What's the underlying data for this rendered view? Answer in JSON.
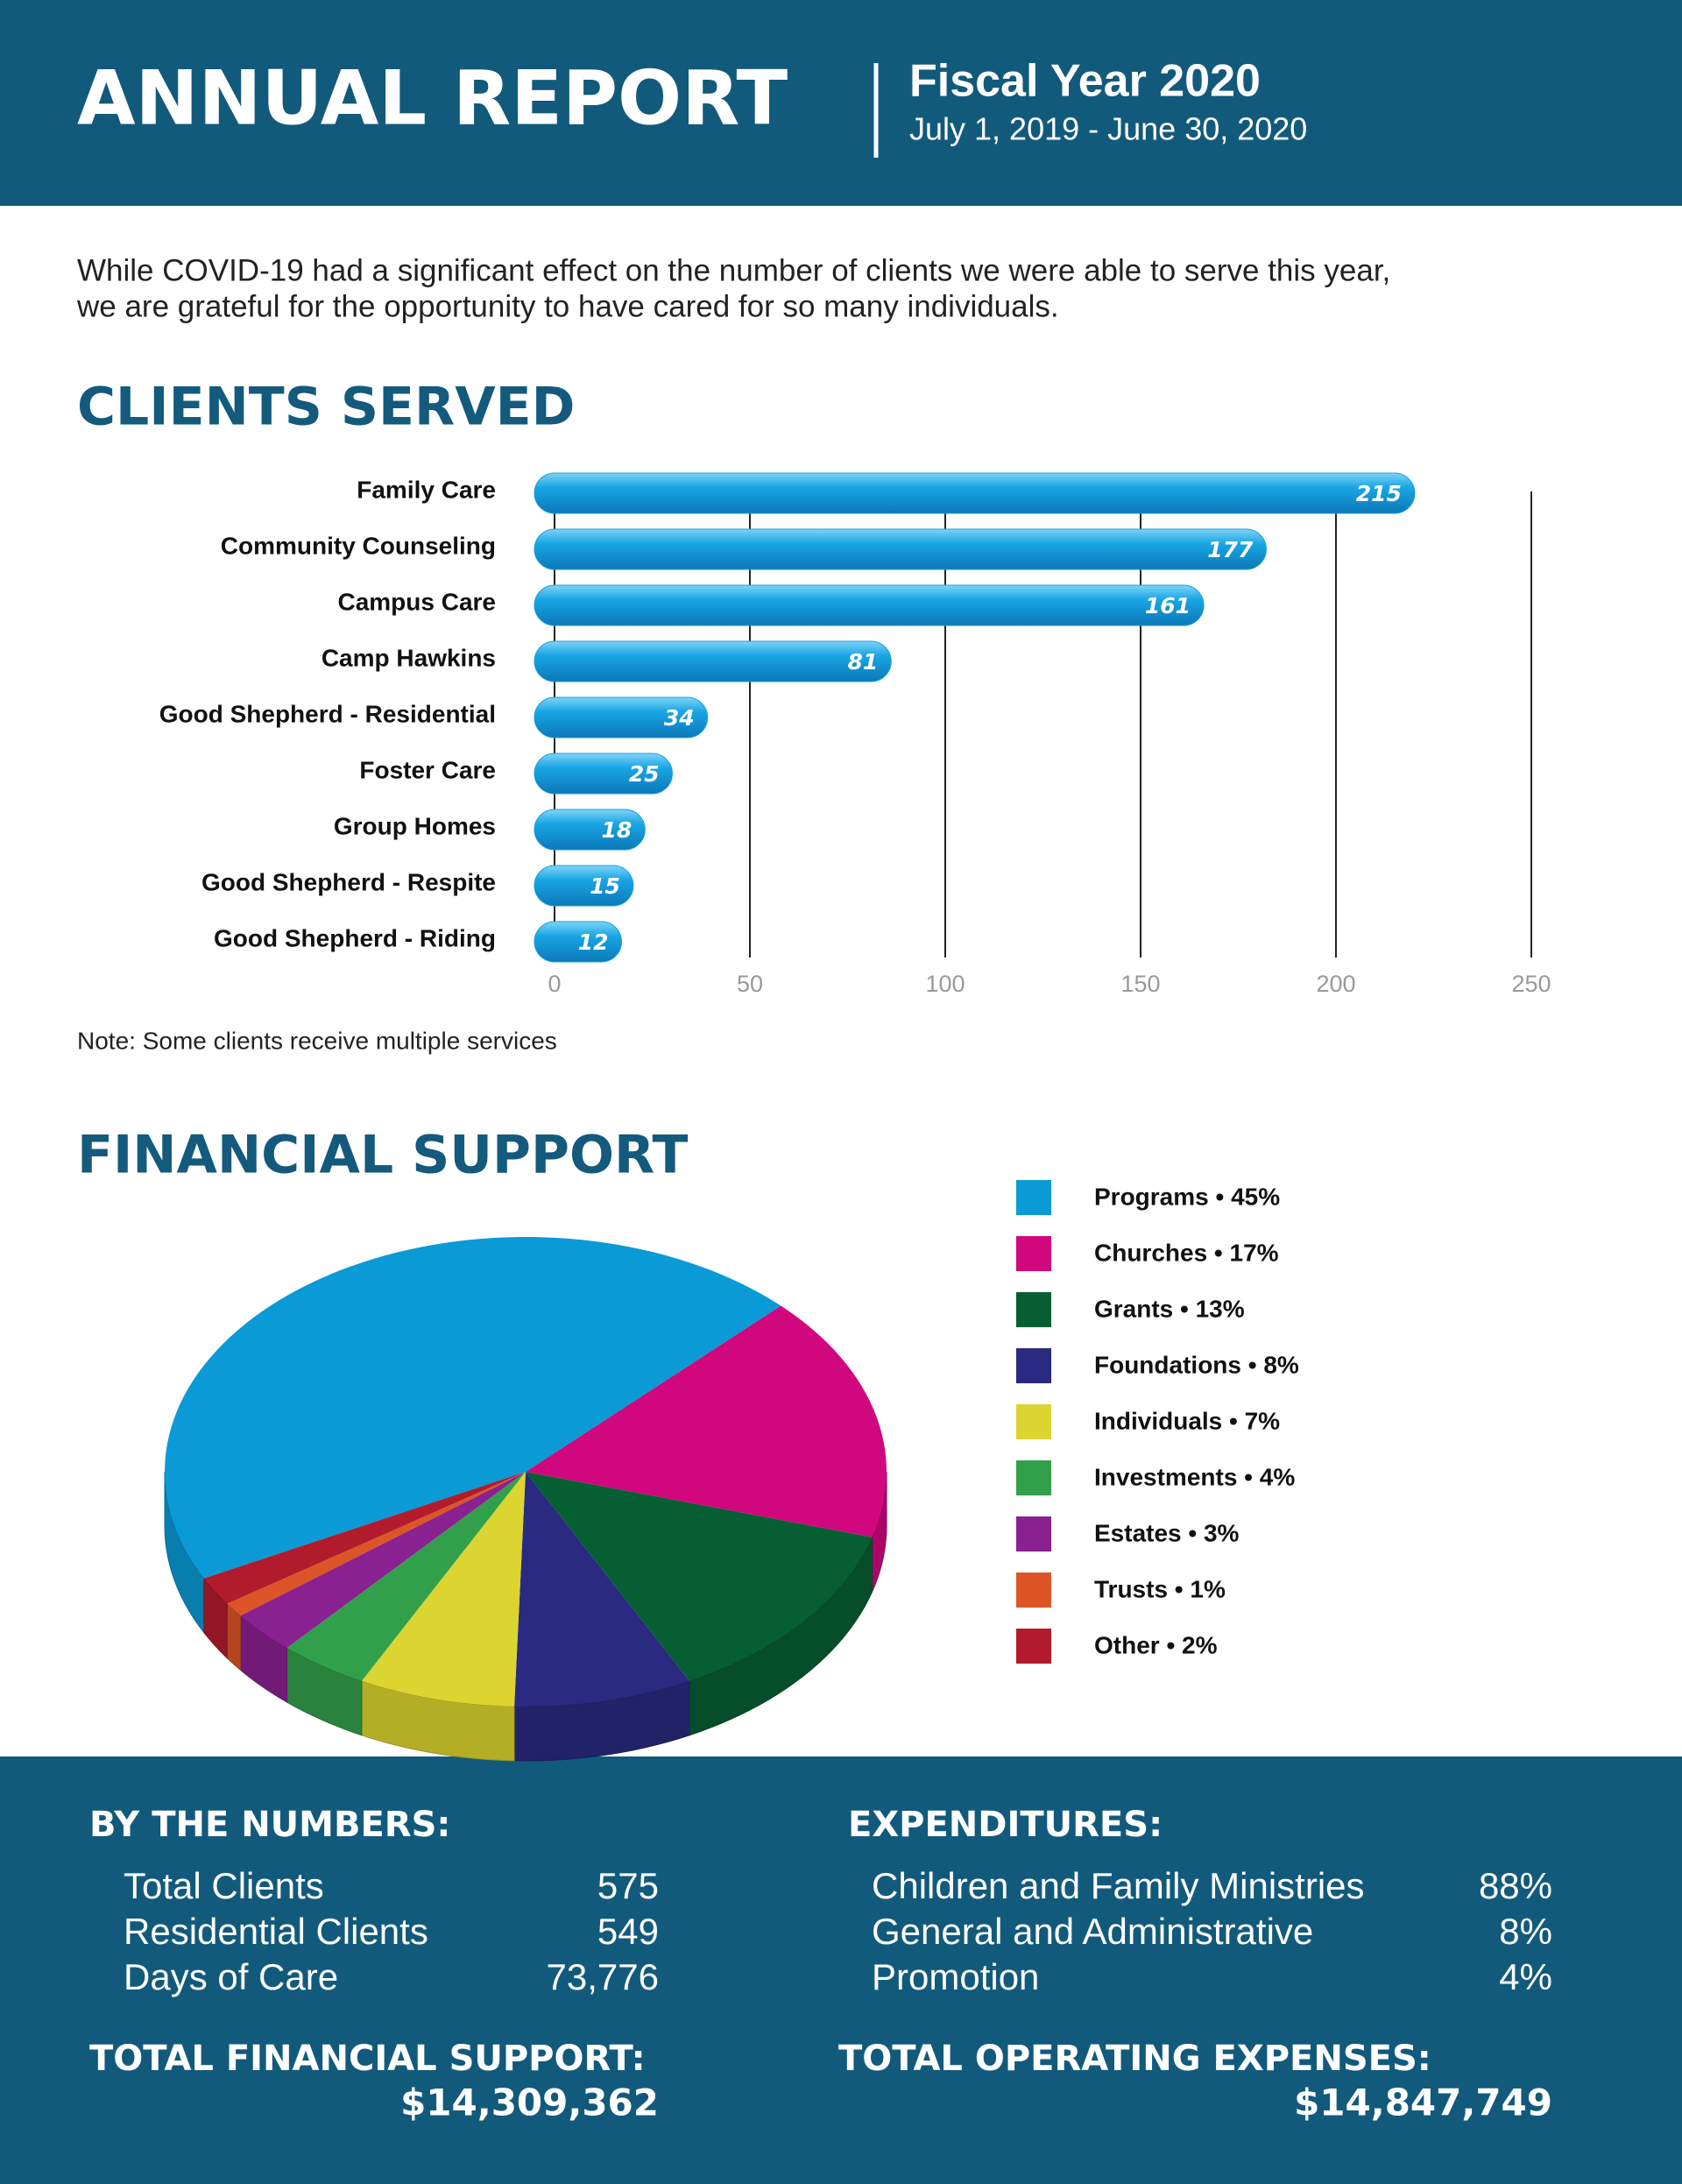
{
  "header": {
    "title": "ANNUAL REPORT",
    "fiscal_year": "Fiscal Year 2020",
    "period": "July 1, 2019 - June 30, 2020"
  },
  "intro": [
    "While COVID-19 had a significant effect on the number of clients we were able to serve this year,",
    "we are grateful for the opportunity to have cared for so many individuals."
  ],
  "chart_data": [
    {
      "type": "bar",
      "orientation": "horizontal",
      "title": "CLIENTS SERVED",
      "categories": [
        "Family Care",
        "Community Counseling",
        "Campus Care",
        "Camp Hawkins",
        "Good Shepherd - Residential",
        "Foster Care",
        "Group Homes",
        "Good Shepherd - Respite",
        "Good Shepherd - Riding"
      ],
      "values": [
        215,
        177,
        161,
        81,
        34,
        25,
        18,
        15,
        12
      ],
      "color": "#18a0de",
      "xlim": [
        0,
        250
      ],
      "xticks": [
        0,
        50,
        100,
        150,
        200,
        250
      ],
      "grid": true,
      "note": "Note: Some clients receive multiple services"
    },
    {
      "type": "pie",
      "title": "FINANCIAL SUPPORT",
      "categories": [
        "Programs • 45%",
        "Churches • 17%",
        "Grants • 13%",
        "Foundations • 8%",
        "Individuals • 7%",
        "Investments • 4%",
        "Estates • 3%",
        "Trusts • 1%",
        "Other • 2%"
      ],
      "values": [
        45,
        17,
        13,
        8,
        7,
        4,
        3,
        1,
        2
      ],
      "colors": [
        "#0a9ad6",
        "#d1077e",
        "#065f32",
        "#2a2a80",
        "#dcd430",
        "#32a04a",
        "#8a2190",
        "#dd5527",
        "#b21b2c"
      ],
      "legend": "right"
    }
  ],
  "by_the_numbers": {
    "title": "BY THE NUMBERS:",
    "rows": [
      [
        "Total Clients",
        "575"
      ],
      [
        "Residential Clients",
        "549"
      ],
      [
        "Days of Care",
        "73,776"
      ]
    ]
  },
  "expenditures": {
    "title": "EXPENDITURES:",
    "rows": [
      [
        "Children and Family Ministries",
        "88%"
      ],
      [
        "General and Administrative",
        "8%"
      ],
      [
        "Promotion",
        "4%"
      ]
    ]
  },
  "total_financial_support": {
    "label": "TOTAL FINANCIAL SUPPORT:",
    "value": "$14,309,362"
  },
  "total_operating_expenses": {
    "label": "TOTAL OPERATING EXPENSES:",
    "value": "$14,847,749"
  }
}
